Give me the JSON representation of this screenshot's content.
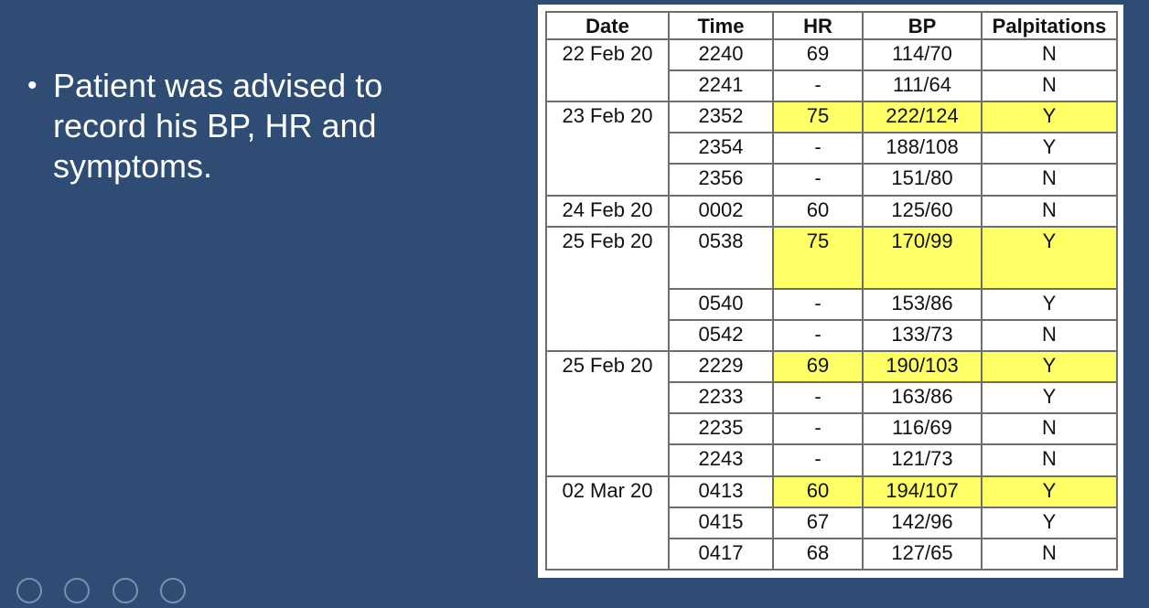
{
  "slide": {
    "bullets": [
      "Patient was advised to record his BP, HR and symptoms."
    ],
    "bullet_glyph": "•"
  },
  "table": {
    "headers": [
      "Date",
      "Time",
      "HR",
      "BP",
      "Palpitations"
    ],
    "groups": [
      {
        "date": "22 Feb 20",
        "rows": [
          {
            "time": "2240",
            "hr": "69",
            "bp": "114/70",
            "palp": "N",
            "highlight": false
          },
          {
            "time": "2241",
            "hr": "-",
            "bp": "111/64",
            "palp": "N",
            "highlight": false
          }
        ]
      },
      {
        "date": "23 Feb 20",
        "rows": [
          {
            "time": "2352",
            "hr": "75",
            "bp": "222/124",
            "palp": "Y",
            "highlight": true
          },
          {
            "time": "2354",
            "hr": "-",
            "bp": "188/108",
            "palp": "Y",
            "highlight": false
          },
          {
            "time": "2356",
            "hr": "-",
            "bp": "151/80",
            "palp": "N",
            "highlight": false
          }
        ]
      },
      {
        "date": "24 Feb 20",
        "rows": [
          {
            "time": "0002",
            "hr": "60",
            "bp": "125/60",
            "palp": "N",
            "highlight": false
          }
        ]
      },
      {
        "date": "25 Feb 20",
        "rows": [
          {
            "time": "0538",
            "hr": "75",
            "bp": "170/99",
            "palp": "Y",
            "highlight": true,
            "tall": true
          },
          {
            "time": "0540",
            "hr": "-",
            "bp": "153/86",
            "palp": "Y",
            "highlight": false
          },
          {
            "time": "0542",
            "hr": "-",
            "bp": "133/73",
            "palp": "N",
            "highlight": false
          }
        ]
      },
      {
        "date": "25 Feb 20",
        "rows": [
          {
            "time": "2229",
            "hr": "69",
            "bp": "190/103",
            "palp": "Y",
            "highlight": true
          },
          {
            "time": "2233",
            "hr": "-",
            "bp": "163/86",
            "palp": "Y",
            "highlight": false
          },
          {
            "time": "2235",
            "hr": "-",
            "bp": "116/69",
            "palp": "N",
            "highlight": false
          },
          {
            "time": "2243",
            "hr": "-",
            "bp": "121/73",
            "palp": "N",
            "highlight": false
          }
        ]
      },
      {
        "date": "02 Mar 20",
        "rows": [
          {
            "time": "0413",
            "hr": "60",
            "bp": "194/107",
            "palp": "Y",
            "highlight": true
          },
          {
            "time": "0415",
            "hr": "67",
            "bp": "142/96",
            "palp": "Y",
            "highlight": false
          },
          {
            "time": "0417",
            "hr": "68",
            "bp": "127/65",
            "palp": "N",
            "highlight": false
          }
        ]
      }
    ]
  },
  "colors": {
    "background": "#2e4c74",
    "highlight": "#ffff66",
    "text_light": "#ffffff"
  }
}
